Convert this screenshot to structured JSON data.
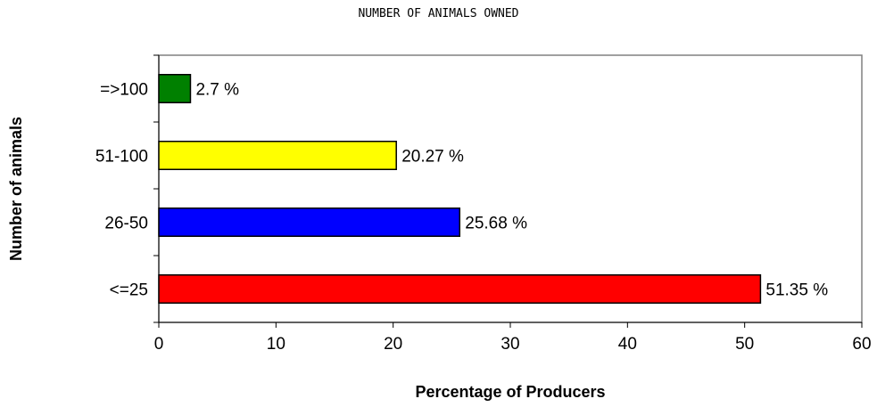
{
  "chart_data": {
    "type": "bar",
    "orientation": "horizontal",
    "title": "NUMBER OF ANIMALS OWNED",
    "xlabel": "Percentage of Producers",
    "ylabel": "Number of animals",
    "categories": [
      "<=25",
      "26-50",
      "51-100",
      "=>100"
    ],
    "values": [
      51.35,
      25.68,
      20.27,
      2.7
    ],
    "data_labels": [
      "51.35 %",
      "25.68 %",
      "20.27 %",
      "2.7 %"
    ],
    "colors": [
      "#ff0000",
      "#0000ff",
      "#ffff00",
      "#008000"
    ],
    "xlim": [
      0,
      60
    ],
    "xticks": [
      0,
      10,
      20,
      30,
      40,
      50,
      60
    ],
    "grid": false,
    "legend": "none"
  }
}
